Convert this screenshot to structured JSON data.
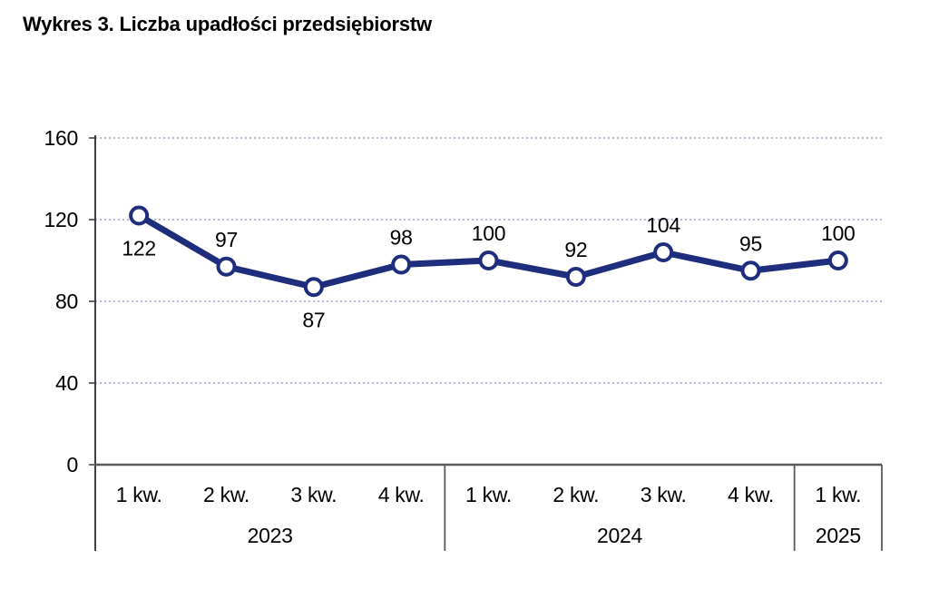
{
  "chart_data": {
    "type": "line",
    "title": "Wykres 3. Liczba upadłości przedsiębiorstw",
    "x": [
      "1 kw.",
      "2 kw.",
      "3 kw.",
      "4 kw.",
      "1 kw.",
      "2 kw.",
      "3 kw.",
      "4 kw.",
      "1 kw."
    ],
    "year_groups": [
      {
        "label": "2023",
        "quarters": 4
      },
      {
        "label": "2024",
        "quarters": 4
      },
      {
        "label": "2025",
        "quarters": 1
      }
    ],
    "series": [
      {
        "name": "Liczba upadłości przedsiębiorstw",
        "values": [
          122,
          97,
          87,
          98,
          100,
          92,
          104,
          95,
          100
        ]
      }
    ],
    "value_label_position": [
      "below",
      "above",
      "below",
      "above",
      "above",
      "above",
      "above",
      "above",
      "above"
    ],
    "ylim": [
      0,
      160
    ],
    "yticks": [
      0,
      40,
      80,
      120,
      160
    ],
    "grid": "horizontal-dotted",
    "legend": "none",
    "colors": {
      "line": "#1f2d7d",
      "marker_fill": "#ffffff",
      "grid": "#9ba3c9",
      "y_axis": "#3f3f3f",
      "x_axis": "#595959",
      "text": "#000000"
    }
  }
}
